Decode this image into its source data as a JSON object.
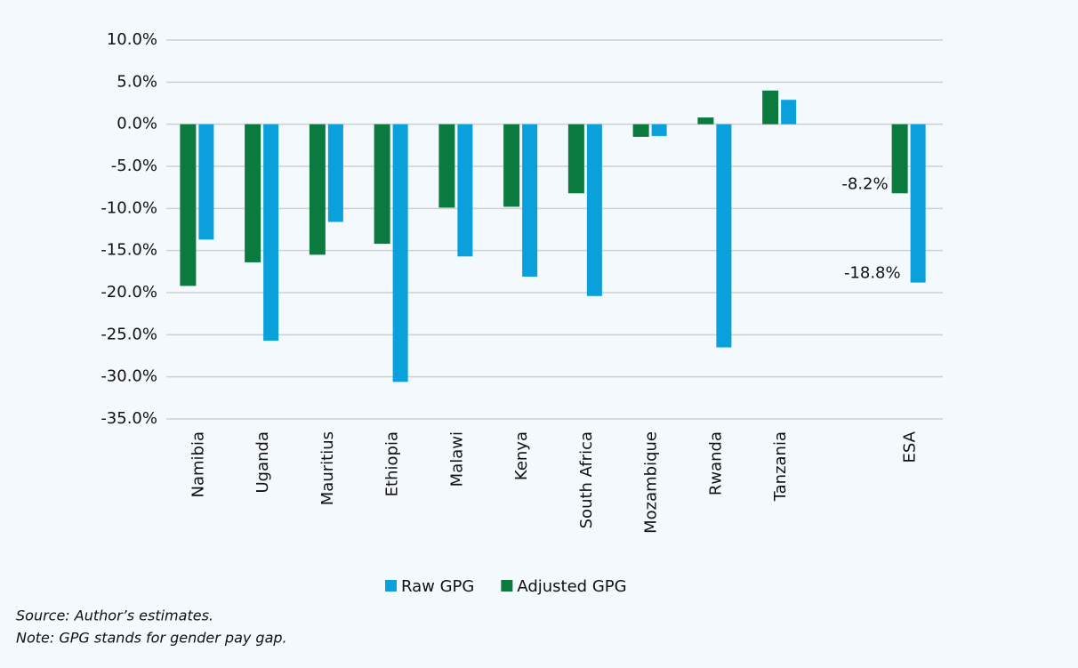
{
  "chart_data": {
    "type": "bar",
    "categories": [
      "Namibia",
      "Uganda",
      "Mauritius",
      "Ethiopia",
      "Malawi",
      "Kenya",
      "South Africa",
      "Mozambique",
      "Rwanda",
      "Tanzania",
      null,
      "ESA"
    ],
    "series": [
      {
        "name": "Adjusted GPG",
        "color": "#0b7a3e",
        "values": [
          -19.2,
          -16.4,
          -15.5,
          -14.2,
          -9.9,
          -9.8,
          -8.2,
          -1.5,
          0.8,
          4.0,
          null,
          -8.2
        ],
        "value_labels": [
          null,
          null,
          null,
          null,
          null,
          null,
          null,
          null,
          null,
          null,
          null,
          "-8.2%"
        ]
      },
      {
        "name": "Raw GPG",
        "color": "#0aa0dc",
        "values": [
          -13.7,
          -25.7,
          -11.6,
          -30.6,
          -15.7,
          -18.1,
          -20.4,
          -1.4,
          -26.5,
          2.9,
          null,
          -18.8
        ],
        "value_labels": [
          null,
          null,
          null,
          null,
          null,
          null,
          null,
          null,
          null,
          null,
          null,
          "-18.8%"
        ]
      }
    ],
    "ylim": [
      -35,
      10
    ],
    "yticks": [
      {
        "value": -35,
        "label": "-35.0%"
      },
      {
        "value": -30,
        "label": "-30.0%"
      },
      {
        "value": -25,
        "label": "-25.0%"
      },
      {
        "value": -20,
        "label": "-20.0%"
      },
      {
        "value": -15,
        "label": "-15.0%"
      },
      {
        "value": -10,
        "label": "-10.0%"
      },
      {
        "value": -5,
        "label": "-5.0%"
      },
      {
        "value": 0,
        "label": "0.0%"
      },
      {
        "value": 5,
        "label": "5.0%"
      },
      {
        "value": 10,
        "label": "10.0%"
      }
    ],
    "grid": true,
    "legend": "bottom",
    "notes": [
      "Source: Author’s estimates.",
      "Note: GPG stands for gender pay gap."
    ]
  }
}
